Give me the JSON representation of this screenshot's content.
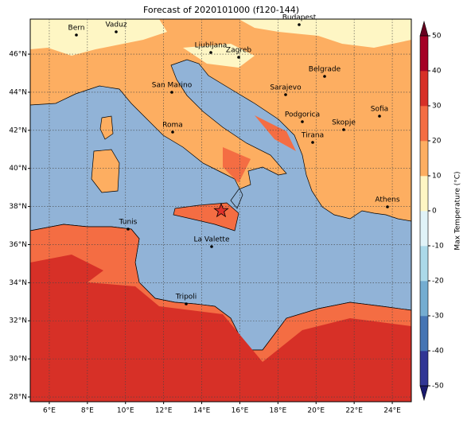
{
  "map": {
    "title": "Forecast of 2020101000 (f120-144)",
    "xlim": [
      5,
      25
    ],
    "ylim": [
      27.75,
      47.84
    ],
    "xticks": [
      {
        "value": 6,
        "label": "6°E"
      },
      {
        "value": 8,
        "label": "8°E"
      },
      {
        "value": 10,
        "label": "10°E"
      },
      {
        "value": 12,
        "label": "12°E"
      },
      {
        "value": 14,
        "label": "14°E"
      },
      {
        "value": 16,
        "label": "16°E"
      },
      {
        "value": 18,
        "label": "18°E"
      },
      {
        "value": 20,
        "label": "20°E"
      },
      {
        "value": 22,
        "label": "22°E"
      },
      {
        "value": 24,
        "label": "24°E"
      }
    ],
    "yticks": [
      {
        "value": 28,
        "label": "28°N"
      },
      {
        "value": 30,
        "label": "30°N"
      },
      {
        "value": 32,
        "label": "32°N"
      },
      {
        "value": 34,
        "label": "34°N"
      },
      {
        "value": 36,
        "label": "36°N"
      },
      {
        "value": 38,
        "label": "38°N"
      },
      {
        "value": 40,
        "label": "40°N"
      },
      {
        "value": 42,
        "label": "42°N"
      },
      {
        "value": 44,
        "label": "44°N"
      },
      {
        "value": 46,
        "label": "46°N"
      }
    ],
    "grid": true,
    "cities": [
      "Bern",
      "Vaduz",
      "Budapest",
      "Ljubljana",
      "Zagreb",
      "Belgrade",
      "San Marino",
      "Sarajevo",
      "Podgorica",
      "Sofia",
      "Skopje",
      "Roma",
      "Tirana",
      "Athens",
      "Tunis",
      "La Valette",
      "Tripoli"
    ],
    "colorbar": {
      "label": "Max Temperature (°C)",
      "lim": [
        -50,
        50
      ],
      "ticks": [
        -50,
        -40,
        -30,
        -20,
        -10,
        0,
        10,
        20,
        30,
        40,
        50
      ],
      "colors": [
        "#313695",
        "#4575b4",
        "#74add1",
        "#abd9e9",
        "#e0f3f8",
        "#fef6c4",
        "#fdae61",
        "#f46d43",
        "#d73027",
        "#a50026"
      ],
      "extend_colors": [
        "#1a1a6e",
        "#67001f"
      ]
    }
  }
}
